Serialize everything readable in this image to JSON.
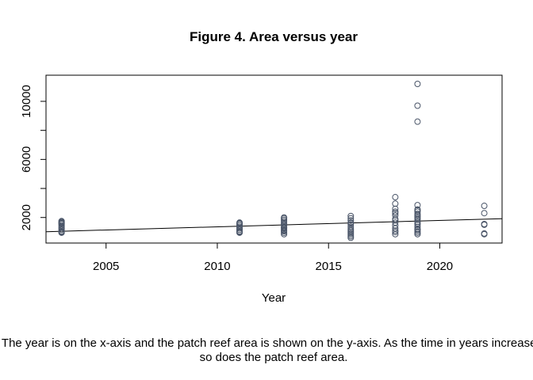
{
  "chart_data": {
    "type": "scatter",
    "title": "Figure 4. Area versus year",
    "xlabel": "Year",
    "ylabel": "",
    "xlim": [
      2002.3,
      2022.8
    ],
    "ylim": [
      240,
      11800
    ],
    "x_ticks": [
      2005,
      2010,
      2015,
      2020
    ],
    "y_ticks": [
      2000,
      6000,
      10000
    ],
    "y_minor_ticks": [
      4000,
      8000
    ],
    "grid": false,
    "point_color": "#4a5568",
    "series": [
      {
        "x": [
          2003,
          2003,
          2003,
          2003,
          2003,
          2003,
          2003,
          2003,
          2003,
          2003,
          2003,
          2003,
          2011,
          2011,
          2011,
          2011,
          2011,
          2011,
          2011,
          2011,
          2011,
          2011,
          2013,
          2013,
          2013,
          2013,
          2013,
          2013,
          2013,
          2013,
          2013,
          2013,
          2013,
          2013,
          2013,
          2013,
          2013,
          2016,
          2016,
          2016,
          2016,
          2016,
          2016,
          2016,
          2016,
          2016,
          2016,
          2016,
          2016,
          2016,
          2016,
          2018,
          2018,
          2018,
          2018,
          2018,
          2018,
          2018,
          2018,
          2018,
          2018,
          2018,
          2018,
          2018,
          2018,
          2019,
          2019,
          2019,
          2019,
          2019,
          2019,
          2019,
          2019,
          2019,
          2019,
          2019,
          2019,
          2019,
          2019,
          2019,
          2019,
          2019,
          2019,
          2019,
          2019,
          2019,
          2022,
          2022,
          2022,
          2022,
          2022,
          2022
        ],
        "y": [
          950,
          1050,
          1150,
          1250,
          1350,
          1450,
          1550,
          1600,
          1650,
          1700,
          1750,
          1000,
          950,
          1050,
          1150,
          1250,
          1350,
          1450,
          1550,
          1600,
          1650,
          1000,
          850,
          950,
          1050,
          1150,
          1250,
          1350,
          1450,
          1550,
          1650,
          1750,
          1850,
          1950,
          2000,
          1100,
          1300,
          600,
          700,
          800,
          900,
          1000,
          1100,
          1200,
          1350,
          1500,
          1650,
          1800,
          1950,
          2100,
          1600,
          850,
          1000,
          1250,
          1450,
          1650,
          1900,
          2150,
          2400,
          2600,
          2950,
          3400,
          1100,
          1800,
          2300,
          850,
          950,
          1050,
          1200,
          1350,
          1500,
          1600,
          1700,
          1850,
          1950,
          2050,
          2150,
          2250,
          2400,
          2500,
          2550,
          2850,
          8600,
          9700,
          11200,
          1150,
          850,
          900,
          1500,
          1550,
          2300,
          2800
        ]
      }
    ],
    "trend_line": {
      "x": [
        2002.3,
        2022.8
      ],
      "y": [
        1020,
        1920
      ]
    },
    "caption": "The year is on the x-axis and the patch reef area is shown on the y-axis. As the time in years increases, so does the patch reef area."
  }
}
